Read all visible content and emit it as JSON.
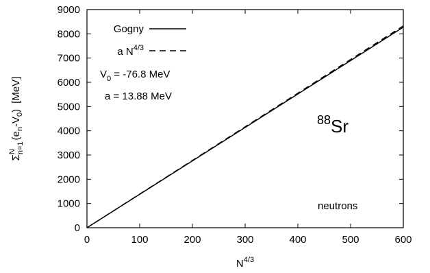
{
  "chart_data": {
    "type": "line",
    "xlim": [
      0,
      600
    ],
    "ylim": [
      0,
      9000
    ],
    "x_ticks": [
      "0",
      "100",
      "200",
      "300",
      "400",
      "500",
      "600"
    ],
    "y_ticks": [
      "0",
      "1000",
      "2000",
      "3000",
      "4000",
      "5000",
      "6000",
      "7000",
      "8000",
      "9000"
    ],
    "xlabel": {
      "base": "N",
      "sup": "4/3"
    },
    "ylabel": {
      "sigma": "Σ",
      "sup": "N",
      "sub": "n=1",
      "paren_open": "(e",
      "e_sub": "n",
      "minus_v": "-V",
      "v_sub": "0",
      "paren_close": ")",
      "unit": "[MeV]"
    },
    "grid": false,
    "legend_position": "top-left",
    "series": [
      {
        "name": "Gogny",
        "style": "solid",
        "x": [
          0,
          600
        ],
        "y": [
          0,
          8275
        ]
      },
      {
        "name_base": "a N",
        "name_sup": "4/3",
        "style": "dashed",
        "x": [
          0,
          600
        ],
        "y": [
          0,
          8328
        ]
      }
    ],
    "annotations": {
      "v0_label": "V",
      "v0_sub": "0",
      "v0_value": " = -76.8 MeV",
      "a_value": "a = 13.88 MeV",
      "nucleus_mass": "88",
      "nucleus_symbol": "Sr",
      "particle": "neutrons"
    }
  }
}
